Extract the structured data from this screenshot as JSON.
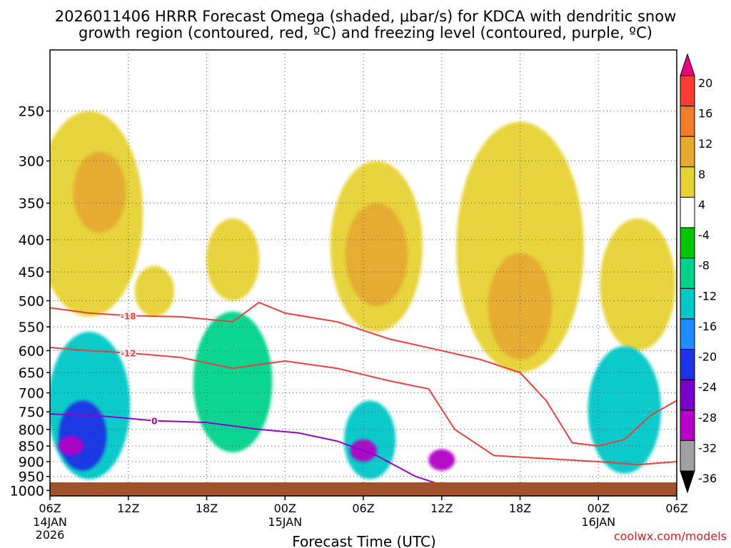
{
  "chart_data": {
    "type": "heatmap",
    "title_line1": "2026011406 HRRR Forecast Omega (shaded, μbar/s) for KDCA with dendritic snow",
    "title_line2": "growth region (contoured, red, ºC) and freezing level (contoured, purple, ºC)",
    "xlabel": "Forecast Time (UTC)",
    "credit": "coolwx.com/models",
    "x_range_hours": [
      0,
      48
    ],
    "x_ticks": [
      {
        "hour": 0,
        "label": "06Z",
        "sub1": "14JAN",
        "sub2": "2026"
      },
      {
        "hour": 6,
        "label": "12Z",
        "sub1": "",
        "sub2": ""
      },
      {
        "hour": 12,
        "label": "18Z",
        "sub1": "",
        "sub2": ""
      },
      {
        "hour": 18,
        "label": "00Z",
        "sub1": "15JAN",
        "sub2": ""
      },
      {
        "hour": 24,
        "label": "06Z",
        "sub1": "",
        "sub2": ""
      },
      {
        "hour": 30,
        "label": "12Z",
        "sub1": "",
        "sub2": ""
      },
      {
        "hour": 36,
        "label": "18Z",
        "sub1": "",
        "sub2": ""
      },
      {
        "hour": 42,
        "label": "00Z",
        "sub1": "16JAN",
        "sub2": ""
      },
      {
        "hour": 48,
        "label": "06Z",
        "sub1": "",
        "sub2": ""
      }
    ],
    "pressure_range_hpa": [
      1020,
      200
    ],
    "y_ticks": [
      "250",
      "300",
      "350",
      "400",
      "450",
      "500",
      "550",
      "600",
      "650",
      "700",
      "750",
      "800",
      "850",
      "900",
      "950",
      "1000"
    ],
    "colorbar": {
      "labels": [
        "20",
        "16",
        "12",
        "8",
        "4",
        "-4",
        "-8",
        "-12",
        "-16",
        "-20",
        "-24",
        "-28",
        "-32",
        "-36"
      ],
      "colors": [
        "#e8007e",
        "#ff3c32",
        "#f07d28",
        "#e6aa32",
        "#e6d232",
        "#ffffff",
        "#00c800",
        "#00d28c",
        "#00c8c8",
        "#1e8cff",
        "#1e32e6",
        "#7800c8",
        "#b400c8",
        "#a0a0a0",
        "#000000"
      ]
    },
    "omega_fields": [
      {
        "name": "positive-ascending-upper",
        "sign": "+",
        "regions": [
          {
            "hour": 3,
            "top_hpa": 250,
            "bottom_hpa": 530,
            "value": 6
          },
          {
            "hour": 3.8,
            "top_hpa": 290,
            "bottom_hpa": 390,
            "value": 12
          },
          {
            "hour": 8,
            "top_hpa": 440,
            "bottom_hpa": 530,
            "value": 5
          },
          {
            "hour": 14,
            "top_hpa": 370,
            "bottom_hpa": 500,
            "value": 5
          },
          {
            "hour": 25,
            "top_hpa": 300,
            "bottom_hpa": 560,
            "value": 6
          },
          {
            "hour": 25,
            "top_hpa": 350,
            "bottom_hpa": 510,
            "value": 11
          },
          {
            "hour": 36,
            "top_hpa": 260,
            "bottom_hpa": 650,
            "value": 6
          },
          {
            "hour": 36,
            "top_hpa": 420,
            "bottom_hpa": 620,
            "value": 9
          },
          {
            "hour": 45,
            "top_hpa": 370,
            "bottom_hpa": 600,
            "value": 6
          }
        ]
      },
      {
        "name": "negative-ascending-lower",
        "sign": "-",
        "regions": [
          {
            "hour": 3,
            "top_hpa": 560,
            "bottom_hpa": 960,
            "value": -12
          },
          {
            "hour": 2.5,
            "top_hpa": 720,
            "bottom_hpa": 930,
            "value": -22
          },
          {
            "hour": 1.6,
            "top_hpa": 820,
            "bottom_hpa": 880,
            "value": -30
          },
          {
            "hour": 14,
            "top_hpa": 520,
            "bottom_hpa": 870,
            "value": -8
          },
          {
            "hour": 24.5,
            "top_hpa": 720,
            "bottom_hpa": 960,
            "value": -14
          },
          {
            "hour": 24,
            "top_hpa": 830,
            "bottom_hpa": 900,
            "value": -29
          },
          {
            "hour": 30,
            "top_hpa": 860,
            "bottom_hpa": 930,
            "value": -30
          },
          {
            "hour": 44,
            "top_hpa": 590,
            "bottom_hpa": 940,
            "value": -12
          }
        ]
      }
    ],
    "contours": [
      {
        "label": "-18",
        "color": "#e84040",
        "points": [
          [
            0,
            513
          ],
          [
            3,
            523
          ],
          [
            6,
            528
          ],
          [
            10,
            530
          ],
          [
            14,
            540
          ],
          [
            16,
            503
          ],
          [
            18,
            523
          ],
          [
            22,
            540
          ],
          [
            26,
            575
          ],
          [
            30,
            600
          ],
          [
            33,
            620
          ],
          [
            36,
            650
          ],
          [
            38,
            720
          ],
          [
            40,
            840
          ],
          [
            42,
            850
          ],
          [
            44,
            830
          ],
          [
            46,
            760
          ],
          [
            48,
            720
          ]
        ]
      },
      {
        "label": "-12",
        "color": "#e84040",
        "points": [
          [
            0,
            593
          ],
          [
            3,
            600
          ],
          [
            6,
            605
          ],
          [
            10,
            615
          ],
          [
            14,
            640
          ],
          [
            18,
            623
          ],
          [
            22,
            640
          ],
          [
            26,
            670
          ],
          [
            29,
            690
          ],
          [
            31,
            800
          ],
          [
            34,
            880
          ],
          [
            38,
            890
          ],
          [
            42,
            900
          ],
          [
            45,
            910
          ],
          [
            48,
            900
          ]
        ]
      },
      {
        "label": "0",
        "color": "#9400c8",
        "points": [
          [
            0,
            756
          ],
          [
            4,
            762
          ],
          [
            8,
            775
          ],
          [
            12,
            780
          ],
          [
            16,
            800
          ],
          [
            19,
            810
          ],
          [
            22,
            835
          ],
          [
            25,
            880
          ],
          [
            28,
            950
          ],
          [
            30,
            980
          ],
          [
            31,
            1000
          ]
        ]
      }
    ],
    "terrain_color": "#a0522d"
  }
}
